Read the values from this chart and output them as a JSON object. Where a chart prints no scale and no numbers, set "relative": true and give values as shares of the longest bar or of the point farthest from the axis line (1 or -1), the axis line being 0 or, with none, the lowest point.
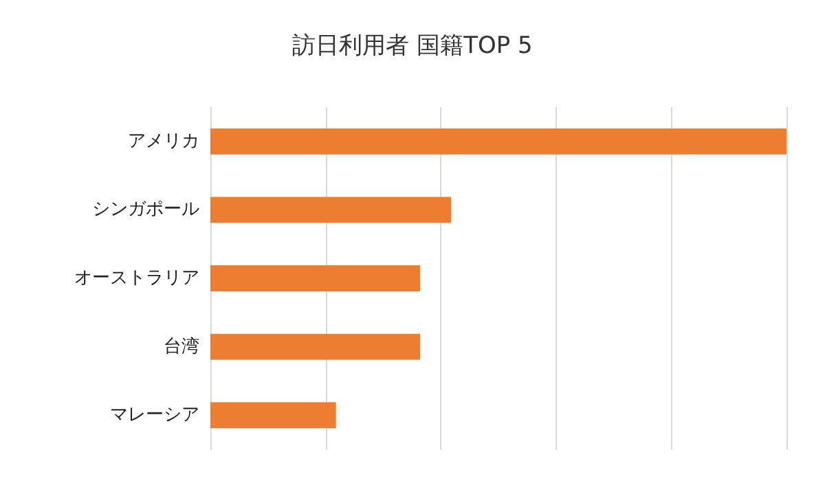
{
  "chart_data": {
    "type": "bar",
    "title": "訪日利用者 国籍TOP 5",
    "orientation": "horizontal",
    "relative": true,
    "categories": [
      "アメリカ",
      "シンガポール",
      "オーストラリア",
      "台湾",
      "マレーシア"
    ],
    "values": [
      1,
      0.418,
      0.364,
      0.364,
      0.218
    ],
    "color": "#ed7d31",
    "grid": "x"
  }
}
